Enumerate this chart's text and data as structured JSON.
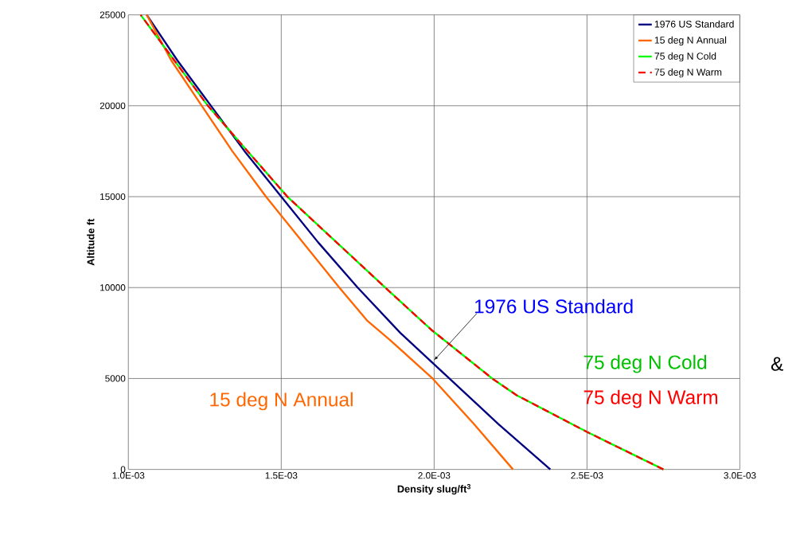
{
  "chart_data": {
    "type": "line",
    "xlabel": "Density slug/ft$^{3}$",
    "ylabel": "Altitude  ft",
    "xlim": [
      0.001,
      0.003
    ],
    "ylim": [
      0,
      25000
    ],
    "xticks": [
      {
        "value": 0.001,
        "label": "1.0E-03"
      },
      {
        "value": 0.0015,
        "label": "1.5E-03"
      },
      {
        "value": 0.002,
        "label": "2.0E-03"
      },
      {
        "value": 0.0025,
        "label": "2.5E-03"
      },
      {
        "value": 0.003,
        "label": "3.0E-03"
      }
    ],
    "yticks": [
      0,
      5000,
      10000,
      15000,
      20000,
      25000
    ],
    "grid": true,
    "legend": "top right",
    "marker": "none",
    "series": [
      {
        "name": "1976 US Standard",
        "color": "#000080",
        "x": [
          0.00238,
          0.00221,
          0.00205,
          0.00189,
          0.00175,
          0.00162,
          0.0015,
          0.00138,
          0.00127,
          0.00116,
          0.00106
        ],
        "values": [
          0,
          2500,
          5000,
          7500,
          10000,
          12500,
          15000,
          17500,
          20000,
          22500,
          25000
        ]
      },
      {
        "name": "15 deg N Annual",
        "color": "#ff6600",
        "x": [
          0.002258,
          0.00213,
          0.001995,
          0.001855,
          0.00178,
          0.00169,
          0.00157,
          0.00145,
          0.00134,
          0.00124,
          0.00114,
          0.00106
        ],
        "values": [
          0,
          2500,
          5000,
          7130,
          8200,
          10000,
          12500,
          15000,
          17500,
          20000,
          22500,
          25000
        ]
      },
      {
        "name": "75 deg N Cold",
        "color": "#00ff00",
        "x": [
          0.00275,
          0.0025,
          0.00227,
          0.00219,
          0.00199,
          0.00184,
          0.00168,
          0.00152,
          0.00139,
          0.00126,
          0.00115,
          0.00104
        ],
        "values": [
          0,
          2060,
          4080,
          5000,
          7690,
          10000,
          12500,
          15000,
          17500,
          20000,
          22500,
          25000
        ]
      },
      {
        "name": "75 deg N Warm",
        "color": "#ff0000",
        "line_style": "dashed",
        "x": [
          0.00275,
          0.0025,
          0.00227,
          0.00219,
          0.00199,
          0.00184,
          0.00168,
          0.00152,
          0.00139,
          0.00126,
          0.00115,
          0.00104
        ],
        "values": [
          0,
          2060,
          4080,
          5000,
          7690,
          10000,
          12500,
          15000,
          17500,
          20000,
          22500,
          25000
        ]
      }
    ],
    "annotations": [
      {
        "text": "1976 US Standard",
        "x": 0.002,
        "y": 6000
      },
      "15 deg N Annual",
      "75 deg N Cold",
      "&",
      "75 deg N Warm"
    ]
  }
}
